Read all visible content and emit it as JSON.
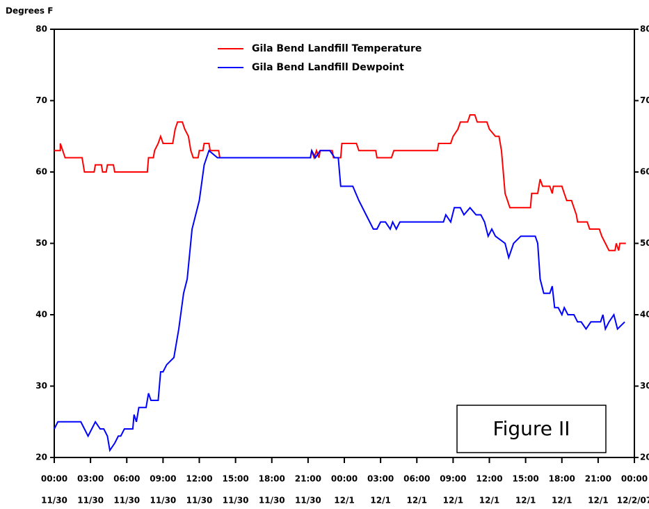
{
  "chart_data": {
    "type": "line",
    "y_axis_label": "Degrees F",
    "annotation": "Figure II",
    "legend": "top",
    "xlim": [
      0,
      48
    ],
    "ylim": [
      20,
      80
    ],
    "y2lim": [
      20,
      80
    ],
    "yticks": [
      20,
      30,
      40,
      50,
      60,
      70,
      80
    ],
    "y2ticks": [
      20,
      30,
      40,
      50,
      60,
      70,
      80
    ],
    "xticks": [
      {
        "value": 0,
        "label": "00:00",
        "date": "11/30"
      },
      {
        "value": 3,
        "label": "03:00",
        "date": "11/30"
      },
      {
        "value": 6,
        "label": "06:00",
        "date": "11/30"
      },
      {
        "value": 9,
        "label": "09:00",
        "date": "11/30"
      },
      {
        "value": 12,
        "label": "12:00",
        "date": "11/30"
      },
      {
        "value": 15,
        "label": "15:00",
        "date": "11/30"
      },
      {
        "value": 18,
        "label": "18:00",
        "date": "11/30"
      },
      {
        "value": 21,
        "label": "21:00",
        "date": "11/30"
      },
      {
        "value": 24,
        "label": "00:00",
        "date": "12/1"
      },
      {
        "value": 27,
        "label": "03:00",
        "date": "12/1"
      },
      {
        "value": 30,
        "label": "06:00",
        "date": "12/1"
      },
      {
        "value": 33,
        "label": "09:00",
        "date": "12/1"
      },
      {
        "value": 36,
        "label": "12:00",
        "date": "12/1"
      },
      {
        "value": 39,
        "label": "15:00",
        "date": "12/1"
      },
      {
        "value": 42,
        "label": "18:00",
        "date": "12/1"
      },
      {
        "value": 45,
        "label": "21:00",
        "date": "12/1"
      },
      {
        "value": 48,
        "label": "00:00",
        "date": "12/2/07"
      }
    ],
    "series": [
      {
        "name": "Gila Bend Landfill Temperature",
        "color": "#ff0000",
        "x": [
          0,
          0.5,
          0.5,
          0.7,
          0.9,
          2.3,
          2.5,
          3.3,
          3.4,
          3.9,
          4.0,
          4.3,
          4.4,
          4.9,
          5.0,
          7.7,
          7.8,
          8.2,
          8.3,
          8.6,
          8.8,
          9.0,
          9.8,
          10.0,
          10.2,
          10.6,
          10.8,
          11.1,
          11.3,
          11.5,
          11.9,
          12.0,
          12.3,
          12.4,
          12.8,
          12.9,
          13.6,
          13.7,
          21.2,
          21.3,
          21.5,
          21.7,
          21.9,
          22.0,
          23.0,
          23.1,
          23.7,
          23.8,
          25.0,
          25.2,
          26.6,
          26.7,
          27.9,
          28.1,
          31.7,
          31.8,
          32.8,
          33.0,
          33.4,
          33.6,
          34.2,
          34.4,
          34.8,
          35.0,
          35.8,
          36.0,
          36.5,
          36.8,
          37.0,
          37.3,
          37.5,
          37.7,
          39.4,
          39.5,
          40.0,
          40.2,
          40.4,
          41.0,
          41.2,
          41.3,
          42.0,
          42.2,
          42.4,
          42.8,
          43.0,
          43.2,
          43.3,
          44.1,
          44.3,
          45.1,
          45.3,
          45.6,
          45.9,
          46.4,
          46.5,
          46.7,
          46.8,
          47.3
        ],
        "values": [
          63,
          63,
          64,
          63,
          62,
          62,
          60,
          60,
          61,
          61,
          60,
          60,
          61,
          61,
          60,
          60,
          62,
          62,
          63,
          64,
          65,
          64,
          64,
          66,
          67,
          67,
          66,
          65,
          63,
          62,
          62,
          63,
          63,
          64,
          64,
          63,
          63,
          62,
          62,
          63,
          62,
          63,
          62,
          63,
          63,
          62,
          62,
          64,
          64,
          63,
          63,
          62,
          62,
          63,
          63,
          64,
          64,
          65,
          66,
          67,
          67,
          68,
          68,
          67,
          67,
          66,
          65,
          65,
          63,
          57,
          56,
          55,
          55,
          57,
          57,
          59,
          58,
          58,
          57,
          58,
          58,
          57,
          56,
          56,
          55,
          54,
          53,
          53,
          52,
          52,
          51,
          50,
          49,
          49,
          50,
          49,
          50,
          50
        ]
      },
      {
        "name": "Gila Bend Landfill Dewpoint",
        "color": "#0000ff",
        "x": [
          0,
          0.3,
          2.2,
          2.5,
          2.8,
          3.1,
          3.4,
          3.8,
          4.1,
          4.4,
          4.6,
          5.0,
          5.3,
          5.5,
          5.8,
          6.5,
          6.6,
          6.8,
          7.0,
          7.6,
          7.8,
          8.0,
          8.6,
          8.8,
          9.0,
          9.3,
          9.9,
          10.3,
          10.7,
          11.0,
          11.4,
          11.7,
          12.0,
          12.4,
          12.8,
          13.5,
          21.2,
          21.3,
          21.6,
          22.0,
          22.8,
          23.2,
          23.5,
          23.7,
          24.7,
          25.2,
          25.8,
          26.4,
          26.7,
          27.0,
          27.4,
          27.8,
          28.0,
          28.3,
          28.6,
          32.2,
          32.4,
          32.8,
          33.1,
          33.6,
          33.9,
          34.4,
          34.9,
          35.3,
          35.6,
          35.9,
          36.2,
          36.5,
          37.3,
          37.6,
          38.0,
          38.6,
          39.8,
          40.0,
          40.2,
          40.5,
          41.0,
          41.2,
          41.4,
          41.7,
          42.0,
          42.2,
          42.5,
          43.0,
          43.3,
          43.6,
          44.0,
          44.4,
          45.2,
          45.4,
          45.6,
          45.9,
          46.3,
          46.6,
          47.2
        ],
        "values": [
          24,
          25,
          25,
          24,
          23,
          24,
          25,
          24,
          24,
          23,
          21,
          22,
          23,
          23,
          24,
          24,
          26,
          25,
          27,
          27,
          29,
          28,
          28,
          32,
          32,
          33,
          34,
          38,
          43,
          45,
          52,
          54,
          56,
          61,
          63,
          62,
          62,
          63,
          62,
          63,
          63,
          62,
          62,
          58,
          58,
          56,
          54,
          52,
          52,
          53,
          53,
          52,
          53,
          52,
          53,
          53,
          54,
          53,
          55,
          55,
          54,
          55,
          54,
          54,
          53,
          51,
          52,
          51,
          50,
          48,
          50,
          51,
          51,
          50,
          45,
          43,
          43,
          44,
          41,
          41,
          40,
          41,
          40,
          40,
          39,
          39,
          38,
          39,
          39,
          40,
          38,
          39,
          40,
          38,
          39
        ]
      }
    ]
  }
}
